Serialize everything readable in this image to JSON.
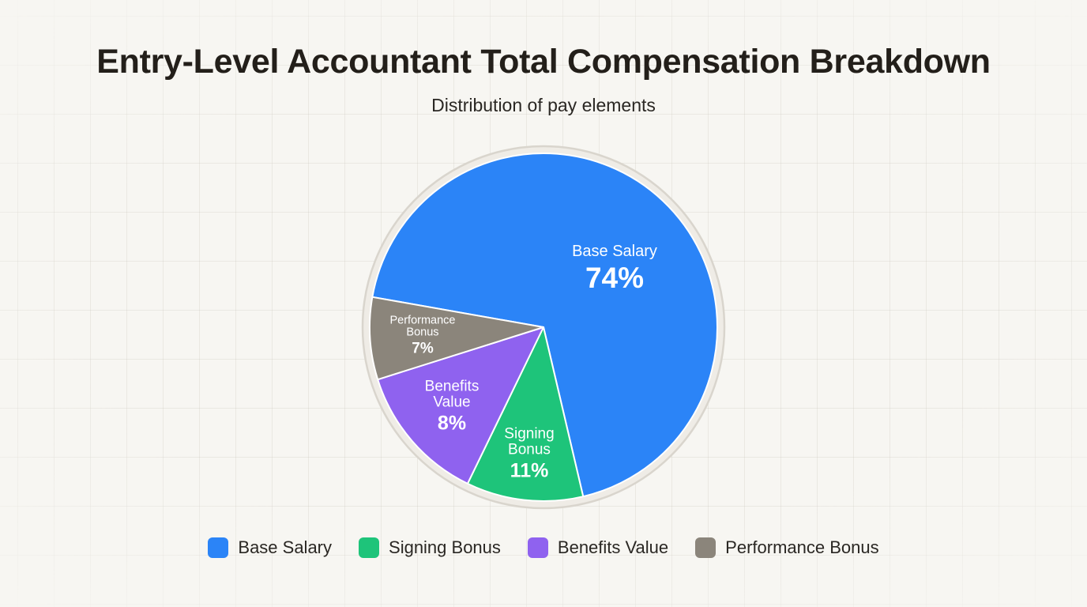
{
  "chart_data": {
    "type": "pie",
    "title": "Entry-Level Accountant Total Compensation Breakdown",
    "subtitle": "Distribution of pay elements",
    "categories": [
      "Base Salary",
      "Signing Bonus",
      "Benefits Value",
      "Performance Bonus"
    ],
    "values": [
      74,
      11,
      8,
      7
    ],
    "unit": "%",
    "colors": [
      "#2b84f7",
      "#1ec47a",
      "#8f62ef",
      "#8b857b"
    ],
    "slice_labels": [
      {
        "name": "Base Salary",
        "pct": "74%"
      },
      {
        "name": "Signing Bonus",
        "pct": "11%"
      },
      {
        "name": "Benefits Value",
        "pct": "8%"
      },
      {
        "name": "Performance Bonus",
        "pct": "7%"
      }
    ],
    "legend_position": "bottom",
    "grid": false
  },
  "header": {
    "title": "Entry-Level Accountant Total Compensation Breakdown",
    "subtitle": "Distribution of pay elements"
  },
  "labels": {
    "base": {
      "line1": "Base Salary",
      "pct": "74%"
    },
    "signing": {
      "line1": "Signing",
      "line2": "Bonus",
      "pct": "11%"
    },
    "benefits": {
      "line1": "Benefits",
      "line2": "Value",
      "pct": "8%"
    },
    "performance": {
      "line1": "Performance",
      "line2": "Bonus",
      "pct": "7%"
    }
  },
  "legend": [
    {
      "label": "Base Salary",
      "color": "#2b84f7"
    },
    {
      "label": "Signing Bonus",
      "color": "#1ec47a"
    },
    {
      "label": "Benefits Value",
      "color": "#8f62ef"
    },
    {
      "label": "Performance Bonus",
      "color": "#8b857b"
    }
  ]
}
